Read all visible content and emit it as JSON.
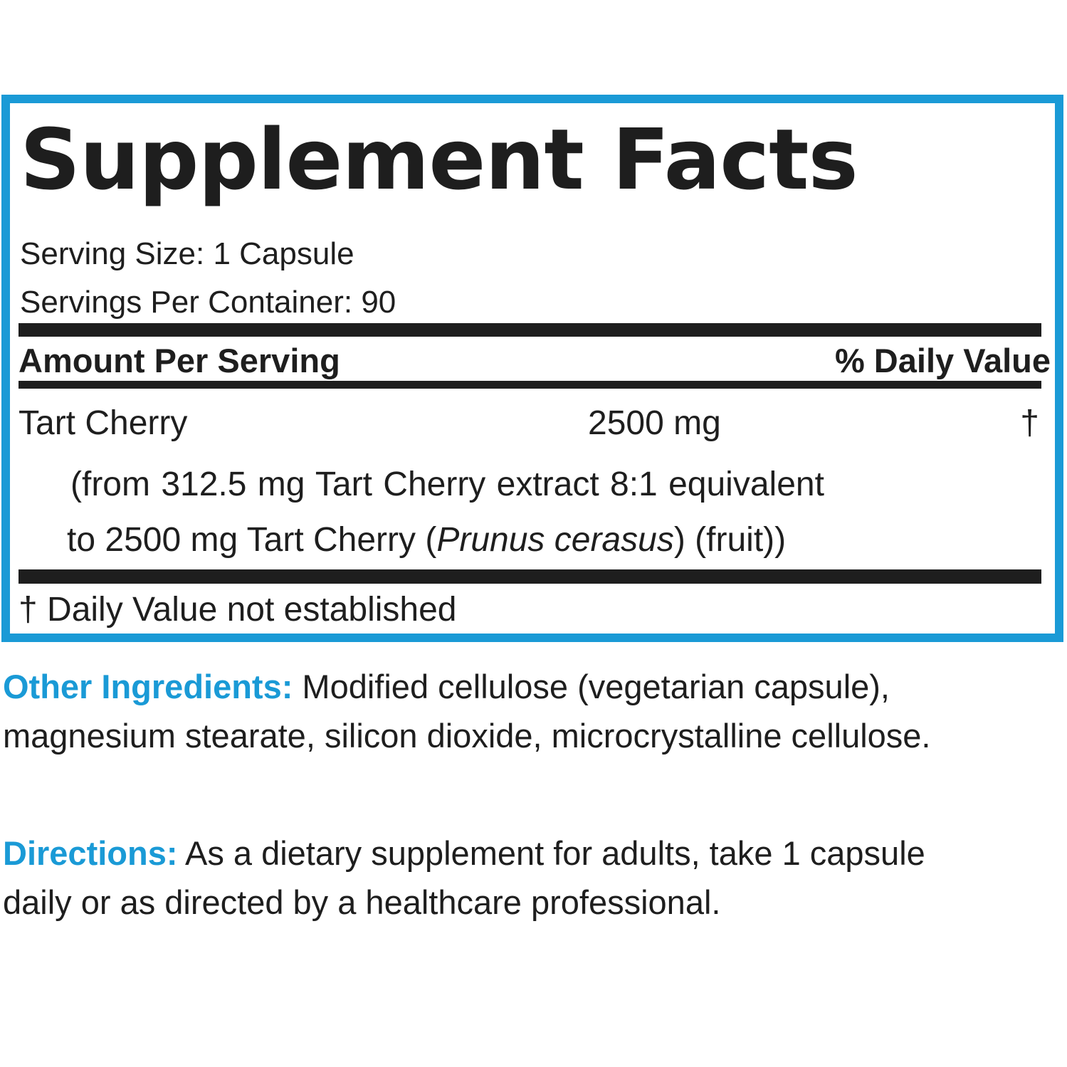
{
  "label": {
    "title": "Supplement Facts",
    "serving_size": "Serving Size: 1 Capsule",
    "servings_per_container": "Servings Per Container: 90",
    "header": {
      "amount_per_serving": "Amount Per Serving",
      "daily_value": "% Daily Value"
    },
    "ingredients": [
      {
        "name": "Tart Cherry",
        "amount": "2500 mg",
        "daily_value": "†",
        "detail_line1": "(from 312.5 mg Tart Cherry extract 8:1 equivalent",
        "detail_line2_pre": "to 2500 mg Tart Cherry (",
        "detail_line2_italic": "Prunus cerasus",
        "detail_line2_post": ") (fruit))"
      }
    ],
    "footnote": "† Daily Value not established"
  },
  "other_ingredients": {
    "label": "Other Ingredients:",
    "text": " Modified cellulose (vegetarian capsule), magnesium stearate, silicon dioxide, microcrystalline cellulose."
  },
  "directions": {
    "label": "Directions:",
    "text": " As a dietary supplement for adults, take 1 capsule daily or as directed by a healthcare professional."
  },
  "colors": {
    "accent": "#1a9ad6",
    "text": "#1e1e1e"
  }
}
